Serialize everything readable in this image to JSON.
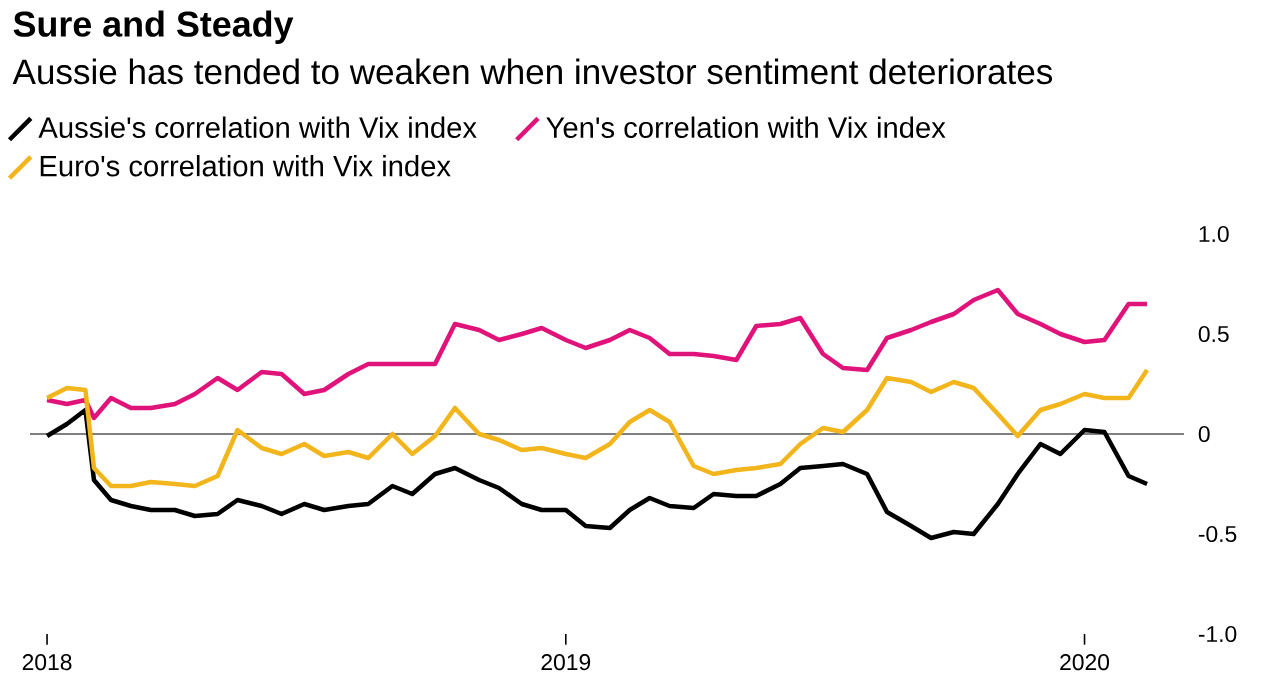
{
  "chart_data": {
    "type": "line",
    "title": "Sure and Steady",
    "subtitle": "Aussie has tended to weaken when investor sentiment deteriorates",
    "x": [
      "2018-01-01",
      "2018-01-15",
      "2018-01-28",
      "2018-02-03",
      "2018-02-15",
      "2018-03-01",
      "2018-03-15",
      "2018-04-01",
      "2018-04-15",
      "2018-05-01",
      "2018-05-15",
      "2018-06-01",
      "2018-06-15",
      "2018-07-01",
      "2018-07-15",
      "2018-08-01",
      "2018-08-15",
      "2018-09-01",
      "2018-09-15",
      "2018-10-01",
      "2018-10-15",
      "2018-11-01",
      "2018-11-15",
      "2018-12-01",
      "2018-12-15",
      "2019-01-01",
      "2019-01-15",
      "2019-02-01",
      "2019-02-15",
      "2019-03-01",
      "2019-03-15",
      "2019-04-01",
      "2019-04-15",
      "2019-05-01",
      "2019-05-15",
      "2019-06-01",
      "2019-06-15",
      "2019-07-01",
      "2019-07-15",
      "2019-08-01",
      "2019-08-15",
      "2019-09-01",
      "2019-09-15",
      "2019-10-01",
      "2019-10-15",
      "2019-11-01",
      "2019-11-15",
      "2019-12-01",
      "2019-12-15",
      "2020-01-01",
      "2020-01-15",
      "2020-02-01",
      "2020-02-14"
    ],
    "series": [
      {
        "name": "Aussie's correlation with Vix index",
        "color": "#000000",
        "values": [
          -0.01,
          0.05,
          0.12,
          -0.23,
          -0.33,
          -0.36,
          -0.38,
          -0.38,
          -0.41,
          -0.4,
          -0.33,
          -0.36,
          -0.4,
          -0.35,
          -0.38,
          -0.36,
          -0.35,
          -0.26,
          -0.3,
          -0.2,
          -0.17,
          -0.23,
          -0.27,
          -0.35,
          -0.38,
          -0.38,
          -0.46,
          -0.47,
          -0.38,
          -0.32,
          -0.36,
          -0.37,
          -0.3,
          -0.31,
          -0.31,
          -0.25,
          -0.17,
          -0.16,
          -0.15,
          -0.2,
          -0.39,
          -0.46,
          -0.52,
          -0.49,
          -0.5,
          -0.35,
          -0.2,
          -0.05,
          -0.1,
          0.02,
          0.01,
          -0.21,
          -0.25
        ]
      },
      {
        "name": "Yen's correlation with Vix index",
        "color": "#e0137a",
        "values": [
          0.17,
          0.15,
          0.17,
          0.08,
          0.18,
          0.13,
          0.13,
          0.15,
          0.2,
          0.28,
          0.22,
          0.31,
          0.3,
          0.2,
          0.22,
          0.3,
          0.35,
          0.35,
          0.35,
          0.35,
          0.55,
          0.52,
          0.47,
          0.5,
          0.53,
          0.47,
          0.43,
          0.47,
          0.52,
          0.48,
          0.4,
          0.4,
          0.39,
          0.37,
          0.54,
          0.55,
          0.58,
          0.4,
          0.33,
          0.32,
          0.48,
          0.52,
          0.56,
          0.6,
          0.67,
          0.72,
          0.6,
          0.55,
          0.5,
          0.46,
          0.47,
          0.65,
          0.65
        ]
      },
      {
        "name": "Euro's correlation with Vix index",
        "color": "#f2b51c",
        "values": [
          0.18,
          0.23,
          0.22,
          -0.17,
          -0.26,
          -0.26,
          -0.24,
          -0.25,
          -0.26,
          -0.21,
          0.02,
          -0.07,
          -0.1,
          -0.05,
          -0.11,
          -0.09,
          -0.12,
          0.0,
          -0.1,
          -0.01,
          0.13,
          0.0,
          -0.03,
          -0.08,
          -0.07,
          -0.1,
          -0.12,
          -0.05,
          0.06,
          0.12,
          0.06,
          -0.16,
          -0.2,
          -0.18,
          -0.17,
          -0.15,
          -0.05,
          0.03,
          0.01,
          0.12,
          0.28,
          0.26,
          0.21,
          0.26,
          0.23,
          0.1,
          -0.01,
          0.12,
          0.15,
          0.2,
          0.18,
          0.18,
          0.32
        ]
      }
    ],
    "xlim": [
      "2017-12-20",
      "2020-03-11"
    ],
    "xticks": [
      "2018",
      "2019",
      "2020"
    ],
    "ylim": [
      -1.0,
      1.0
    ],
    "yticks": [
      {
        "value": 1.0,
        "label": "1.0"
      },
      {
        "value": 0.5,
        "label": "0.5"
      },
      0,
      {
        "value": -0.5,
        "label": "-0.5"
      },
      {
        "value": -1.0,
        "label": "-1.0"
      }
    ],
    "ref_lines": [
      {
        "axis": "y",
        "value": 0,
        "color": "#555555"
      }
    ],
    "legend": "top left"
  }
}
